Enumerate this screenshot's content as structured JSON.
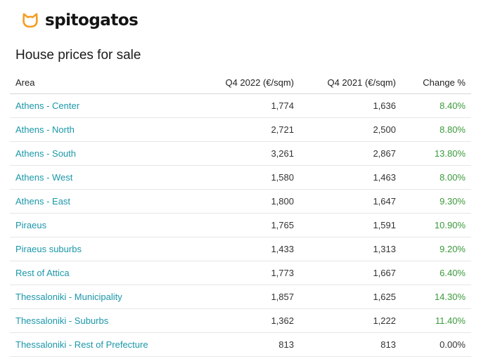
{
  "brand": {
    "name": "spitogatos",
    "logo_icon": "cat-head-icon",
    "accent_color": "#f59d22"
  },
  "page": {
    "title": "House prices for sale"
  },
  "table": {
    "headers": {
      "area": "Area",
      "q4_2022": "Q4 2022 (€/sqm)",
      "q4_2021": "Q4 2021 (€/sqm)",
      "change": "Change %"
    },
    "rows": [
      {
        "area": "Athens - Center",
        "q4_2022": "1,774",
        "q4_2021": "1,636",
        "change": "8.40%"
      },
      {
        "area": "Athens - North",
        "q4_2022": "2,721",
        "q4_2021": "2,500",
        "change": "8.80%"
      },
      {
        "area": "Athens - South",
        "q4_2022": "3,261",
        "q4_2021": "2,867",
        "change": "13.80%"
      },
      {
        "area": "Athens - West",
        "q4_2022": "1,580",
        "q4_2021": "1,463",
        "change": "8.00%"
      },
      {
        "area": "Athens - East",
        "q4_2022": "1,800",
        "q4_2021": "1,647",
        "change": "9.30%"
      },
      {
        "area": "Piraeus",
        "q4_2022": "1,765",
        "q4_2021": "1,591",
        "change": "10.90%"
      },
      {
        "area": "Piraeus suburbs",
        "q4_2022": "1,433",
        "q4_2021": "1,313",
        "change": "9.20%"
      },
      {
        "area": "Rest of Attica",
        "q4_2022": "1,773",
        "q4_2021": "1,667",
        "change": "6.40%"
      },
      {
        "area": "Thessaloniki - Municipality",
        "q4_2022": "1,857",
        "q4_2021": "1,625",
        "change": "14.30%"
      },
      {
        "area": "Thessaloniki - Suburbs",
        "q4_2022": "1,362",
        "q4_2021": "1,222",
        "change": "11.40%"
      },
      {
        "area": "Thessaloniki - Rest of Prefecture",
        "q4_2022": "813",
        "q4_2021": "813",
        "change": "0.00%"
      }
    ],
    "colors": {
      "area_link": "#1b97a9",
      "positive_change": "#3a9a3a",
      "neutral_change": "#333333"
    }
  }
}
